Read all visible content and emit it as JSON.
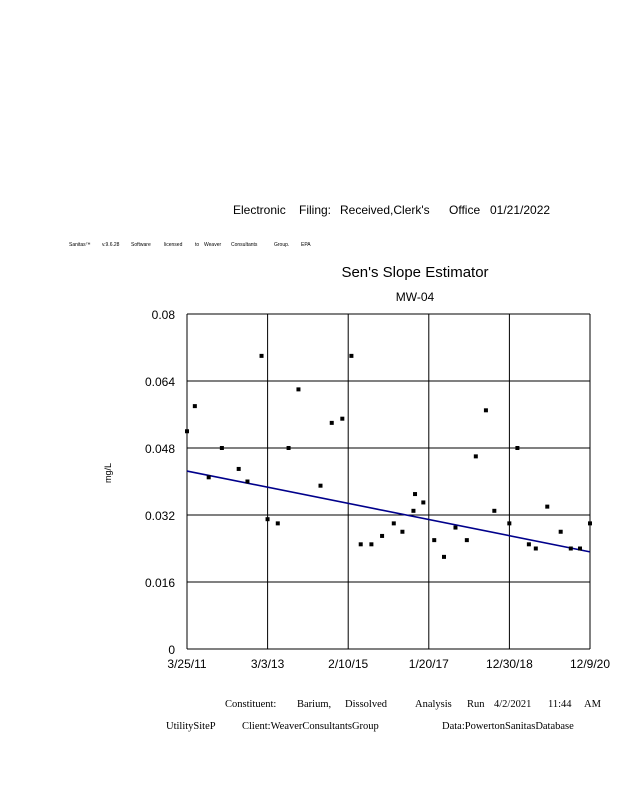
{
  "header": {
    "filing_words": [
      "Electronic",
      "Filing:",
      "Received,Clerk's",
      "Office",
      "01/21/2022"
    ],
    "license_words": [
      "Sanitas™",
      "v.9.6.28",
      "Software",
      "licensed",
      "to",
      "Weaver",
      "Consultants",
      "Group.",
      "EPA"
    ]
  },
  "footer": {
    "line1_words": [
      "Constituent:",
      "Barium,",
      "Dissolved",
      "Analysis",
      "Run",
      "4/2/2021",
      "11:44",
      "AM"
    ],
    "line2_words": [
      "UtilitySiteP",
      "Client:WeaverConsultantsGroup",
      "Data:PowertonSanitasDatabase"
    ]
  },
  "chart_data": {
    "type": "scatter",
    "title": "Sen's Slope Estimator",
    "subtitle": "MW-04",
    "ylabel": "mg/L",
    "xlabel": "",
    "ylim": [
      0,
      0.08
    ],
    "yticks": [
      "0",
      "0.016",
      "0.032",
      "0.048",
      "0.064",
      "0.08"
    ],
    "xlim": [
      "2011-03-25",
      "2020-12-09"
    ],
    "xticks": [
      "3/25/11",
      "3/3/13",
      "2/10/15",
      "1/20/17",
      "12/30/18",
      "12/9/20"
    ],
    "grid": true,
    "colors": {
      "points": "#000000",
      "trend": "#00008b",
      "grid": "#000000"
    },
    "series": [
      {
        "x": [
          "2011-03-25",
          "2011-06-02",
          "2011-10-02",
          "2012-01-26",
          "2012-06-22",
          "2012-09-07",
          "2013-01-09",
          "2013-03-03",
          "2013-06-01",
          "2013-09-04",
          "2013-11-30",
          "2014-06-12",
          "2014-09-19",
          "2014-12-21",
          "2015-03-11",
          "2015-06-01",
          "2015-09-03",
          "2015-12-06",
          "2016-03-18",
          "2016-06-02",
          "2016-09-21",
          "2016-12-03",
          "2017-03-09",
          "2017-06-03",
          "2017-09-12",
          "2017-12-21",
          "2018-03-10",
          "2018-06-07",
          "2018-08-20",
          "2018-12-30",
          "2019-03-11",
          "2019-06-20",
          "2019-08-20",
          "2019-11-29",
          "2020-03-26",
          "2020-06-23",
          "2020-09-12",
          "2020-12-09",
          "2016-09-07"
        ],
        "y": [
          0.052,
          0.058,
          0.041,
          0.048,
          0.043,
          0.04,
          0.07,
          0.031,
          0.03,
          0.048,
          0.062,
          0.039,
          0.054,
          0.055,
          0.07,
          0.025,
          0.025,
          0.027,
          0.03,
          0.028,
          0.037,
          0.035,
          0.026,
          0.022,
          0.029,
          0.026,
          0.046,
          0.057,
          0.033,
          0.03,
          0.048,
          0.025,
          0.024,
          0.034,
          0.028,
          0.024,
          0.024,
          0.03,
          0.033
        ]
      }
    ],
    "trend": {
      "x": [
        "2011-03-25",
        "2020-12-09"
      ],
      "y": [
        0.0425,
        0.0232
      ]
    }
  }
}
